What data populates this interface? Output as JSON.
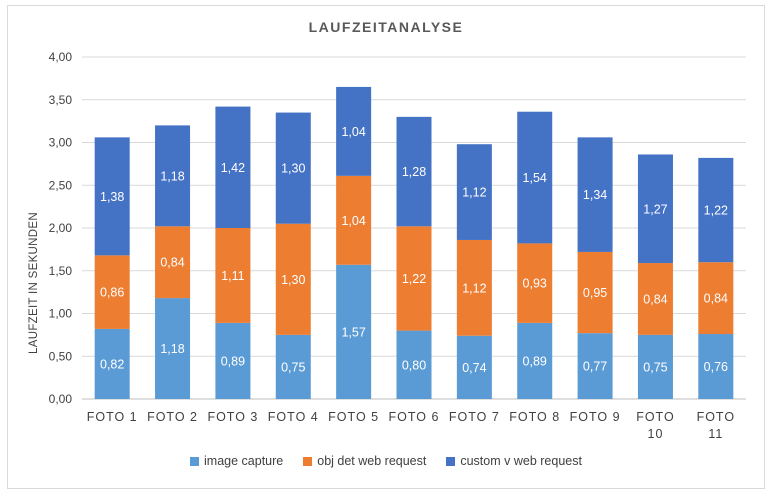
{
  "chart_data": {
    "type": "bar",
    "stacked": true,
    "title": "LAUFZEITANALYSE",
    "xlabel": "",
    "ylabel": "LAUFZEIT IN SEKUNDEN",
    "ylim": [
      0,
      4
    ],
    "yticks": [
      "0,00",
      "0,50",
      "1,00",
      "1,50",
      "2,00",
      "2,50",
      "3,00",
      "3,50",
      "4,00"
    ],
    "grid": true,
    "legend_position": "bottom",
    "categories": [
      [
        "FOTO 1"
      ],
      [
        "FOTO 2"
      ],
      [
        "FOTO 3"
      ],
      [
        "FOTO 4"
      ],
      [
        "FOTO 5"
      ],
      [
        "FOTO 6"
      ],
      [
        "FOTO 7"
      ],
      [
        "FOTO 8"
      ],
      [
        "FOTO 9"
      ],
      [
        "FOTO",
        "10"
      ],
      [
        "FOTO",
        "11"
      ]
    ],
    "series": [
      {
        "name": "image capture",
        "color": "#5b9bd5",
        "values": [
          0.82,
          1.18,
          0.89,
          0.75,
          1.57,
          0.8,
          0.74,
          0.89,
          0.77,
          0.75,
          0.76
        ],
        "labels": [
          "0,82",
          "1,18",
          "0,89",
          "0,75",
          "1,57",
          "0,80",
          "0,74",
          "0,89",
          "0,77",
          "0,75",
          "0,76"
        ]
      },
      {
        "name": "obj det web request",
        "color": "#ed7d31",
        "values": [
          0.86,
          0.84,
          1.11,
          1.3,
          1.04,
          1.22,
          1.12,
          0.93,
          0.95,
          0.84,
          0.84
        ],
        "labels": [
          "0,86",
          "0,84",
          "1,11",
          "1,30",
          "1,04",
          "1,22",
          "1,12",
          "0,93",
          "0,95",
          "0,84",
          "0,84"
        ]
      },
      {
        "name": "custom v web request",
        "color": "#4472c4",
        "values": [
          1.38,
          1.18,
          1.42,
          1.3,
          1.04,
          1.28,
          1.12,
          1.54,
          1.34,
          1.27,
          1.22
        ],
        "labels": [
          "1,38",
          "1,18",
          "1,42",
          "1,30",
          "1,04",
          "1,28",
          "1,12",
          "1,54",
          "1,34",
          "1,27",
          "1,22"
        ]
      }
    ]
  }
}
